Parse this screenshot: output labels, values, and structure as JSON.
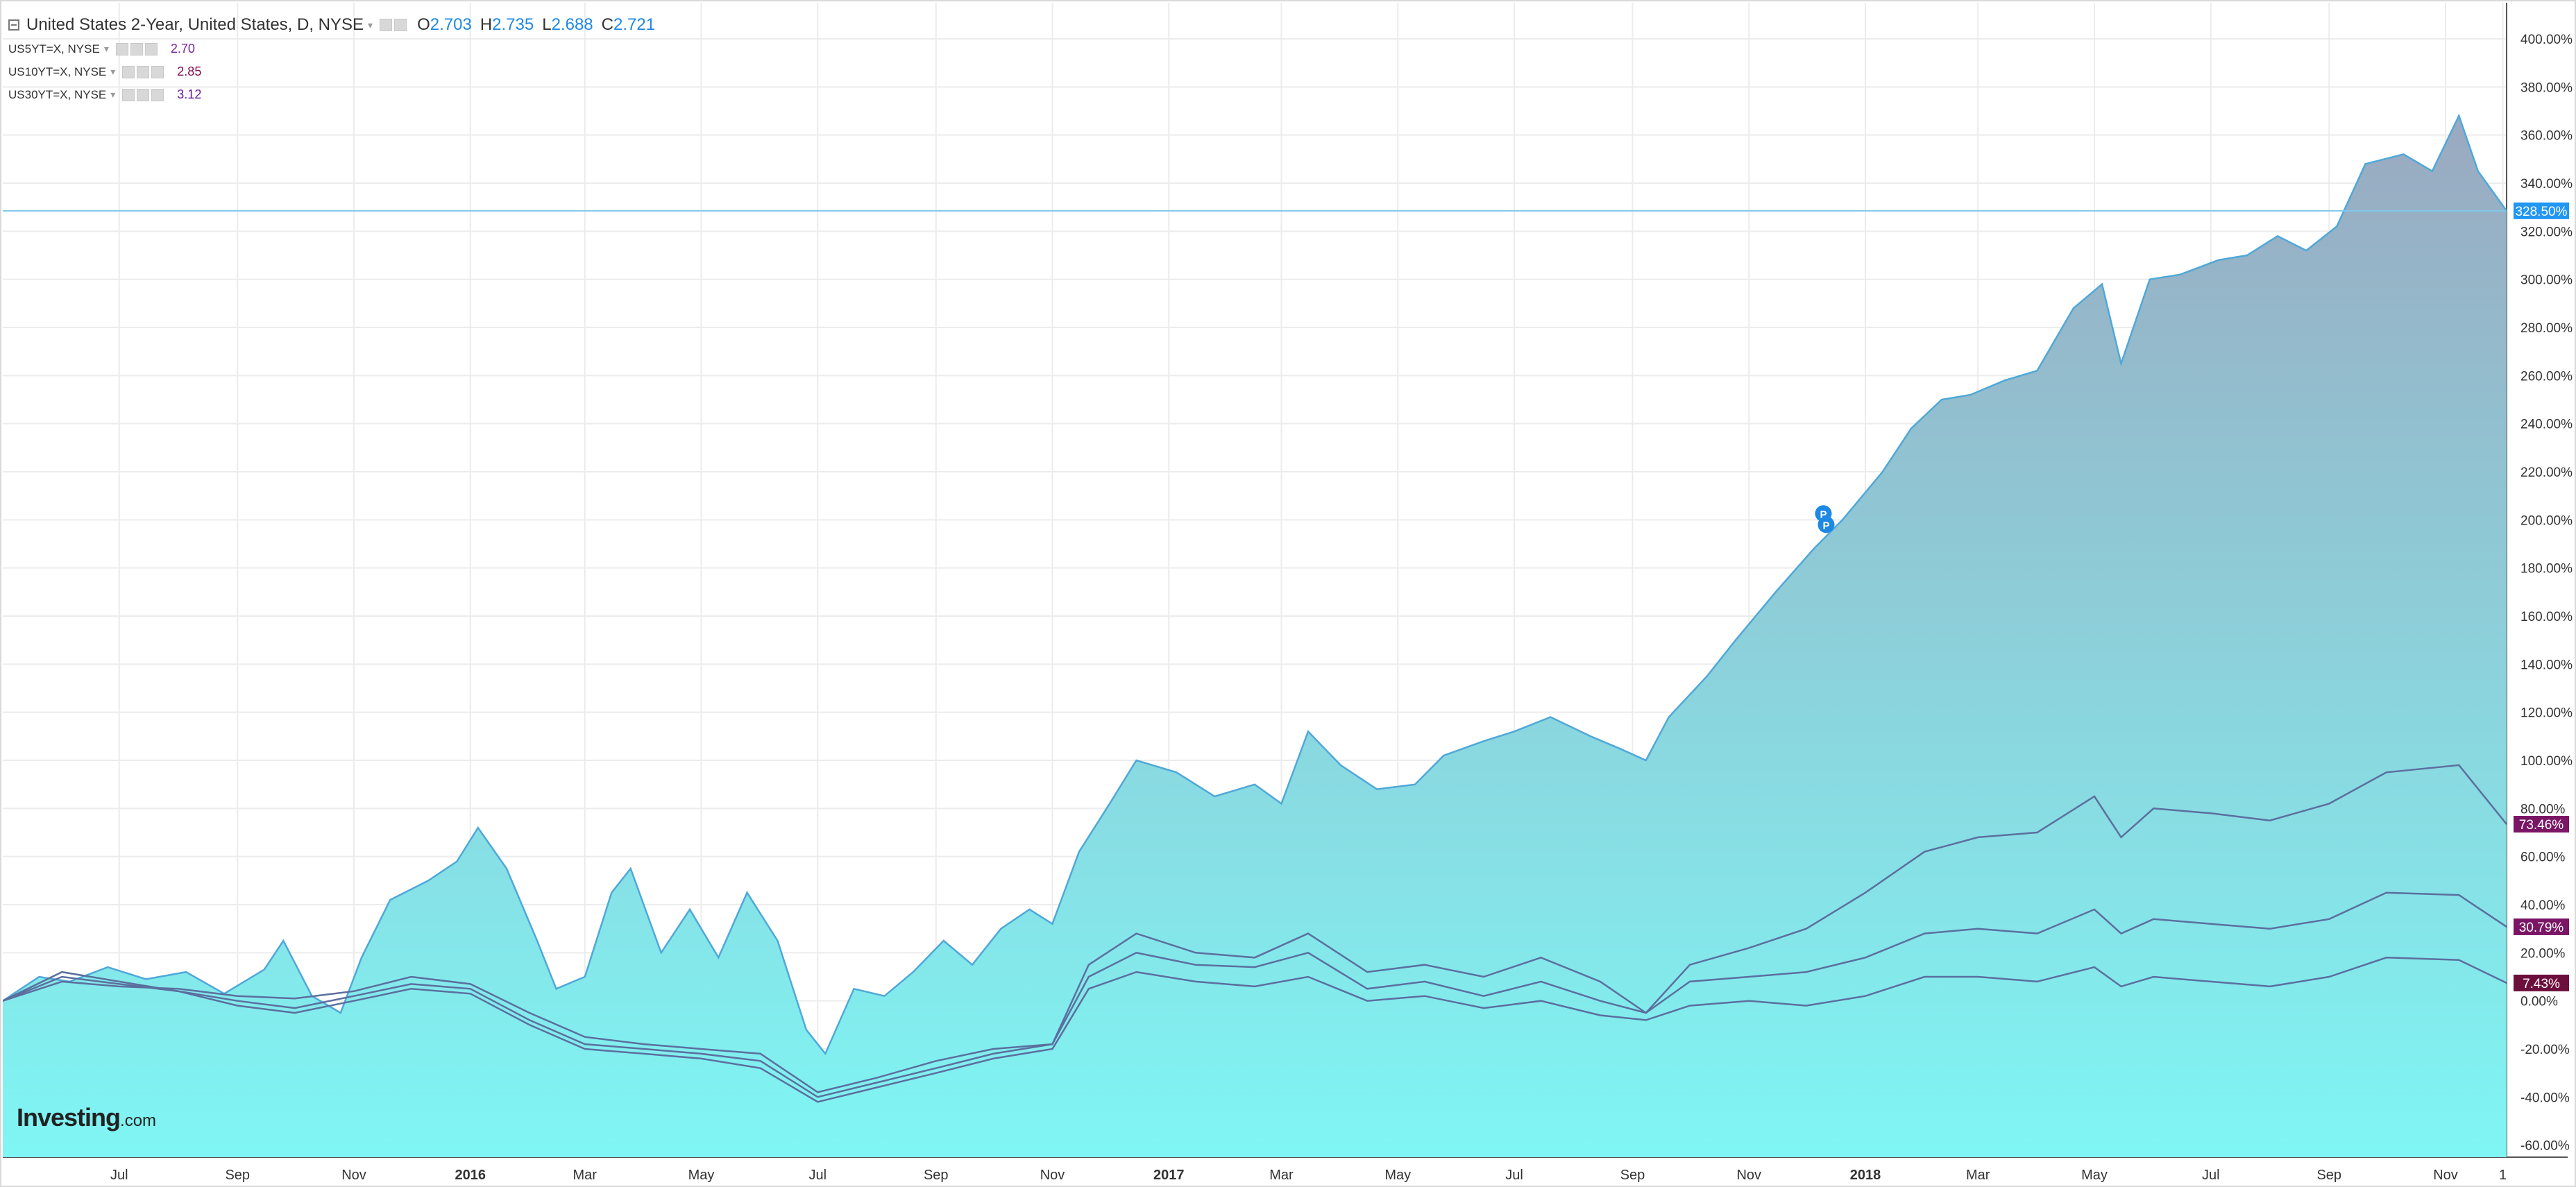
{
  "legend": {
    "main": {
      "title": "United States 2-Year, United States, D, NYSE",
      "open_label": "O",
      "open": "2.703",
      "high_label": "H",
      "high": "2.735",
      "low_label": "L",
      "low": "2.688",
      "close_label": "C",
      "close": "2.721"
    },
    "studies": [
      {
        "symbol": "US5YT=X, NYSE",
        "value": "2.70",
        "color": "#7b1fa2"
      },
      {
        "symbol": "US10YT=X, NYSE",
        "value": "2.85",
        "color": "#880e4f"
      },
      {
        "symbol": "US30YT=X, NYSE",
        "value": "3.12",
        "color": "#6a1b9a"
      }
    ]
  },
  "watermark": {
    "brand": "Investing",
    "suffix": ".com"
  },
  "chart_data": {
    "type": "area",
    "x_range": [
      "2015-05-01",
      "2018-12-03"
    ],
    "ylim": [
      -65,
      415
    ],
    "y_ticks": [
      -60,
      -40,
      -20,
      0,
      20,
      40,
      60,
      80,
      100,
      120,
      140,
      160,
      180,
      200,
      220,
      240,
      260,
      280,
      300,
      320,
      340,
      360,
      380,
      400
    ],
    "y_tick_format": "{v}.00%",
    "x_ticks": [
      {
        "date": "2015-07-01",
        "label": "Jul",
        "bold": false
      },
      {
        "date": "2015-09-01",
        "label": "Sep",
        "bold": false
      },
      {
        "date": "2015-11-01",
        "label": "Nov",
        "bold": false
      },
      {
        "date": "2016-01-01",
        "label": "2016",
        "bold": true
      },
      {
        "date": "2016-03-01",
        "label": "Mar",
        "bold": false
      },
      {
        "date": "2016-05-01",
        "label": "May",
        "bold": false
      },
      {
        "date": "2016-07-01",
        "label": "Jul",
        "bold": false
      },
      {
        "date": "2016-09-01",
        "label": "Sep",
        "bold": false
      },
      {
        "date": "2016-11-01",
        "label": "Nov",
        "bold": false
      },
      {
        "date": "2017-01-01",
        "label": "2017",
        "bold": true
      },
      {
        "date": "2017-03-01",
        "label": "Mar",
        "bold": false
      },
      {
        "date": "2017-05-01",
        "label": "May",
        "bold": false
      },
      {
        "date": "2017-07-01",
        "label": "Jul",
        "bold": false
      },
      {
        "date": "2017-09-01",
        "label": "Sep",
        "bold": false
      },
      {
        "date": "2017-11-01",
        "label": "Nov",
        "bold": false
      },
      {
        "date": "2018-01-01",
        "label": "2018",
        "bold": true
      },
      {
        "date": "2018-03-01",
        "label": "Mar",
        "bold": false
      },
      {
        "date": "2018-05-01",
        "label": "May",
        "bold": false
      },
      {
        "date": "2018-07-01",
        "label": "Jul",
        "bold": false
      },
      {
        "date": "2018-09-01",
        "label": "Sep",
        "bold": false
      },
      {
        "date": "2018-11-01",
        "label": "Nov",
        "bold": false
      },
      {
        "date": "2018-12-01",
        "label": "1",
        "bold": false
      }
    ],
    "grid": true,
    "current_line_value": 328.5,
    "series": [
      {
        "name": "United States 2-Year",
        "style": "area",
        "color": "#4fa8d8",
        "fill_top": "#9aa9c0",
        "fill_bottom": "#7ff6f4",
        "end_label": "328.50%",
        "label_color": "#2196f3",
        "points": [
          [
            "2015-05-01",
            0
          ],
          [
            "2015-05-20",
            10
          ],
          [
            "2015-06-05",
            8
          ],
          [
            "2015-06-25",
            14
          ],
          [
            "2015-07-15",
            9
          ],
          [
            "2015-08-05",
            12
          ],
          [
            "2015-08-25",
            3
          ],
          [
            "2015-09-15",
            13
          ],
          [
            "2015-09-25",
            25
          ],
          [
            "2015-10-10",
            2
          ],
          [
            "2015-10-25",
            -5
          ],
          [
            "2015-11-05",
            18
          ],
          [
            "2015-11-20",
            42
          ],
          [
            "2015-12-10",
            50
          ],
          [
            "2015-12-25",
            58
          ],
          [
            "2016-01-05",
            72
          ],
          [
            "2016-01-20",
            55
          ],
          [
            "2016-02-05",
            25
          ],
          [
            "2016-02-15",
            5
          ],
          [
            "2016-03-01",
            10
          ],
          [
            "2016-03-15",
            45
          ],
          [
            "2016-03-25",
            55
          ],
          [
            "2016-04-10",
            20
          ],
          [
            "2016-04-25",
            38
          ],
          [
            "2016-05-10",
            18
          ],
          [
            "2016-05-25",
            45
          ],
          [
            "2016-06-10",
            25
          ],
          [
            "2016-06-25",
            -12
          ],
          [
            "2016-07-05",
            -22
          ],
          [
            "2016-07-20",
            5
          ],
          [
            "2016-08-05",
            2
          ],
          [
            "2016-08-20",
            12
          ],
          [
            "2016-09-05",
            25
          ],
          [
            "2016-09-20",
            15
          ],
          [
            "2016-10-05",
            30
          ],
          [
            "2016-10-20",
            38
          ],
          [
            "2016-11-01",
            32
          ],
          [
            "2016-11-15",
            62
          ],
          [
            "2016-12-01",
            82
          ],
          [
            "2016-12-15",
            100
          ],
          [
            "2017-01-05",
            95
          ],
          [
            "2017-01-25",
            85
          ],
          [
            "2017-02-15",
            90
          ],
          [
            "2017-03-01",
            82
          ],
          [
            "2017-03-15",
            112
          ],
          [
            "2017-04-01",
            98
          ],
          [
            "2017-04-20",
            88
          ],
          [
            "2017-05-10",
            90
          ],
          [
            "2017-05-25",
            102
          ],
          [
            "2017-06-15",
            108
          ],
          [
            "2017-07-01",
            112
          ],
          [
            "2017-07-20",
            118
          ],
          [
            "2017-08-10",
            110
          ],
          [
            "2017-08-25",
            105
          ],
          [
            "2017-09-08",
            100
          ],
          [
            "2017-09-20",
            118
          ],
          [
            "2017-10-10",
            135
          ],
          [
            "2017-10-25",
            150
          ],
          [
            "2017-11-15",
            170
          ],
          [
            "2017-12-05",
            188
          ],
          [
            "2017-12-20",
            200
          ],
          [
            "2018-01-10",
            220
          ],
          [
            "2018-01-25",
            238
          ],
          [
            "2018-02-10",
            250
          ],
          [
            "2018-02-25",
            252
          ],
          [
            "2018-03-15",
            258
          ],
          [
            "2018-04-01",
            262
          ],
          [
            "2018-04-20",
            288
          ],
          [
            "2018-05-05",
            298
          ],
          [
            "2018-05-15",
            265
          ],
          [
            "2018-05-30",
            300
          ],
          [
            "2018-06-15",
            302
          ],
          [
            "2018-07-05",
            308
          ],
          [
            "2018-07-20",
            310
          ],
          [
            "2018-08-05",
            318
          ],
          [
            "2018-08-20",
            312
          ],
          [
            "2018-09-05",
            322
          ],
          [
            "2018-09-20",
            348
          ],
          [
            "2018-10-10",
            352
          ],
          [
            "2018-10-25",
            345
          ],
          [
            "2018-11-08",
            368
          ],
          [
            "2018-11-18",
            345
          ],
          [
            "2018-12-03",
            328.5
          ]
        ]
      },
      {
        "name": "US5YT=X",
        "style": "line",
        "color": "#5b6f9e",
        "end_label": "73.46%",
        "label_color": "#7b1565",
        "points": [
          [
            "2015-05-01",
            0
          ],
          [
            "2015-06-01",
            8
          ],
          [
            "2015-07-01",
            6
          ],
          [
            "2015-08-01",
            5
          ],
          [
            "2015-09-01",
            2
          ],
          [
            "2015-10-01",
            1
          ],
          [
            "2015-11-01",
            4
          ],
          [
            "2015-12-01",
            10
          ],
          [
            "2016-01-01",
            7
          ],
          [
            "2016-02-01",
            -5
          ],
          [
            "2016-03-01",
            -15
          ],
          [
            "2016-04-01",
            -18
          ],
          [
            "2016-05-01",
            -20
          ],
          [
            "2016-06-01",
            -22
          ],
          [
            "2016-07-01",
            -38
          ],
          [
            "2016-08-01",
            -32
          ],
          [
            "2016-09-01",
            -25
          ],
          [
            "2016-10-01",
            -20
          ],
          [
            "2016-11-01",
            -18
          ],
          [
            "2016-11-20",
            15
          ],
          [
            "2016-12-15",
            28
          ],
          [
            "2017-01-15",
            20
          ],
          [
            "2017-02-15",
            18
          ],
          [
            "2017-03-15",
            28
          ],
          [
            "2017-04-15",
            12
          ],
          [
            "2017-05-15",
            15
          ],
          [
            "2017-06-15",
            10
          ],
          [
            "2017-07-15",
            18
          ],
          [
            "2017-08-15",
            8
          ],
          [
            "2017-09-08",
            -5
          ],
          [
            "2017-10-01",
            15
          ],
          [
            "2017-11-01",
            22
          ],
          [
            "2017-12-01",
            30
          ],
          [
            "2018-01-01",
            45
          ],
          [
            "2018-02-01",
            62
          ],
          [
            "2018-03-01",
            68
          ],
          [
            "2018-04-01",
            70
          ],
          [
            "2018-05-01",
            85
          ],
          [
            "2018-05-15",
            68
          ],
          [
            "2018-06-01",
            80
          ],
          [
            "2018-07-01",
            78
          ],
          [
            "2018-08-01",
            75
          ],
          [
            "2018-09-01",
            82
          ],
          [
            "2018-10-01",
            95
          ],
          [
            "2018-11-08",
            98
          ],
          [
            "2018-12-03",
            73.46
          ]
        ]
      },
      {
        "name": "US10YT=X",
        "style": "line",
        "color": "#5b6f9e",
        "end_label": "30.79%",
        "label_color": "#7b1565",
        "points": [
          [
            "2015-05-01",
            0
          ],
          [
            "2015-06-01",
            10
          ],
          [
            "2015-07-01",
            7
          ],
          [
            "2015-08-01",
            4
          ],
          [
            "2015-09-01",
            0
          ],
          [
            "2015-10-01",
            -3
          ],
          [
            "2015-11-01",
            2
          ],
          [
            "2015-12-01",
            7
          ],
          [
            "2016-01-01",
            5
          ],
          [
            "2016-02-01",
            -8
          ],
          [
            "2016-03-01",
            -18
          ],
          [
            "2016-04-01",
            -20
          ],
          [
            "2016-05-01",
            -22
          ],
          [
            "2016-06-01",
            -25
          ],
          [
            "2016-07-01",
            -40
          ],
          [
            "2016-08-01",
            -34
          ],
          [
            "2016-09-01",
            -28
          ],
          [
            "2016-10-01",
            -22
          ],
          [
            "2016-11-01",
            -18
          ],
          [
            "2016-11-20",
            10
          ],
          [
            "2016-12-15",
            20
          ],
          [
            "2017-01-15",
            15
          ],
          [
            "2017-02-15",
            14
          ],
          [
            "2017-03-15",
            20
          ],
          [
            "2017-04-15",
            5
          ],
          [
            "2017-05-15",
            8
          ],
          [
            "2017-06-15",
            2
          ],
          [
            "2017-07-15",
            8
          ],
          [
            "2017-08-15",
            0
          ],
          [
            "2017-09-08",
            -5
          ],
          [
            "2017-10-01",
            8
          ],
          [
            "2017-11-01",
            10
          ],
          [
            "2017-12-01",
            12
          ],
          [
            "2018-01-01",
            18
          ],
          [
            "2018-02-01",
            28
          ],
          [
            "2018-03-01",
            30
          ],
          [
            "2018-04-01",
            28
          ],
          [
            "2018-05-01",
            38
          ],
          [
            "2018-05-15",
            28
          ],
          [
            "2018-06-01",
            34
          ],
          [
            "2018-07-01",
            32
          ],
          [
            "2018-08-01",
            30
          ],
          [
            "2018-09-01",
            34
          ],
          [
            "2018-10-01",
            45
          ],
          [
            "2018-11-08",
            44
          ],
          [
            "2018-12-03",
            30.79
          ]
        ]
      },
      {
        "name": "US30YT=X",
        "style": "line",
        "color": "#5b6f9e",
        "end_label": "7.43%",
        "label_color": "#6d0f3c",
        "points": [
          [
            "2015-05-01",
            0
          ],
          [
            "2015-06-01",
            12
          ],
          [
            "2015-07-01",
            8
          ],
          [
            "2015-08-01",
            4
          ],
          [
            "2015-09-01",
            -2
          ],
          [
            "2015-10-01",
            -5
          ],
          [
            "2015-11-01",
            0
          ],
          [
            "2015-12-01",
            5
          ],
          [
            "2016-01-01",
            3
          ],
          [
            "2016-02-01",
            -10
          ],
          [
            "2016-03-01",
            -20
          ],
          [
            "2016-04-01",
            -22
          ],
          [
            "2016-05-01",
            -24
          ],
          [
            "2016-06-01",
            -28
          ],
          [
            "2016-07-01",
            -42
          ],
          [
            "2016-08-01",
            -36
          ],
          [
            "2016-09-01",
            -30
          ],
          [
            "2016-10-01",
            -24
          ],
          [
            "2016-11-01",
            -20
          ],
          [
            "2016-11-20",
            5
          ],
          [
            "2016-12-15",
            12
          ],
          [
            "2017-01-15",
            8
          ],
          [
            "2017-02-15",
            6
          ],
          [
            "2017-03-15",
            10
          ],
          [
            "2017-04-15",
            0
          ],
          [
            "2017-05-15",
            2
          ],
          [
            "2017-06-15",
            -3
          ],
          [
            "2017-07-15",
            0
          ],
          [
            "2017-08-15",
            -6
          ],
          [
            "2017-09-08",
            -8
          ],
          [
            "2017-10-01",
            -2
          ],
          [
            "2017-11-01",
            0
          ],
          [
            "2017-12-01",
            -2
          ],
          [
            "2018-01-01",
            2
          ],
          [
            "2018-02-01",
            10
          ],
          [
            "2018-03-01",
            10
          ],
          [
            "2018-04-01",
            8
          ],
          [
            "2018-05-01",
            14
          ],
          [
            "2018-05-15",
            6
          ],
          [
            "2018-06-01",
            10
          ],
          [
            "2018-07-01",
            8
          ],
          [
            "2018-08-01",
            6
          ],
          [
            "2018-09-01",
            10
          ],
          [
            "2018-10-01",
            18
          ],
          [
            "2018-11-08",
            17
          ],
          [
            "2018-12-03",
            7.43
          ]
        ]
      }
    ],
    "markers": [
      {
        "date": "2017-12-10",
        "value": 198,
        "label": "P",
        "color": "#1e88e5"
      }
    ]
  }
}
